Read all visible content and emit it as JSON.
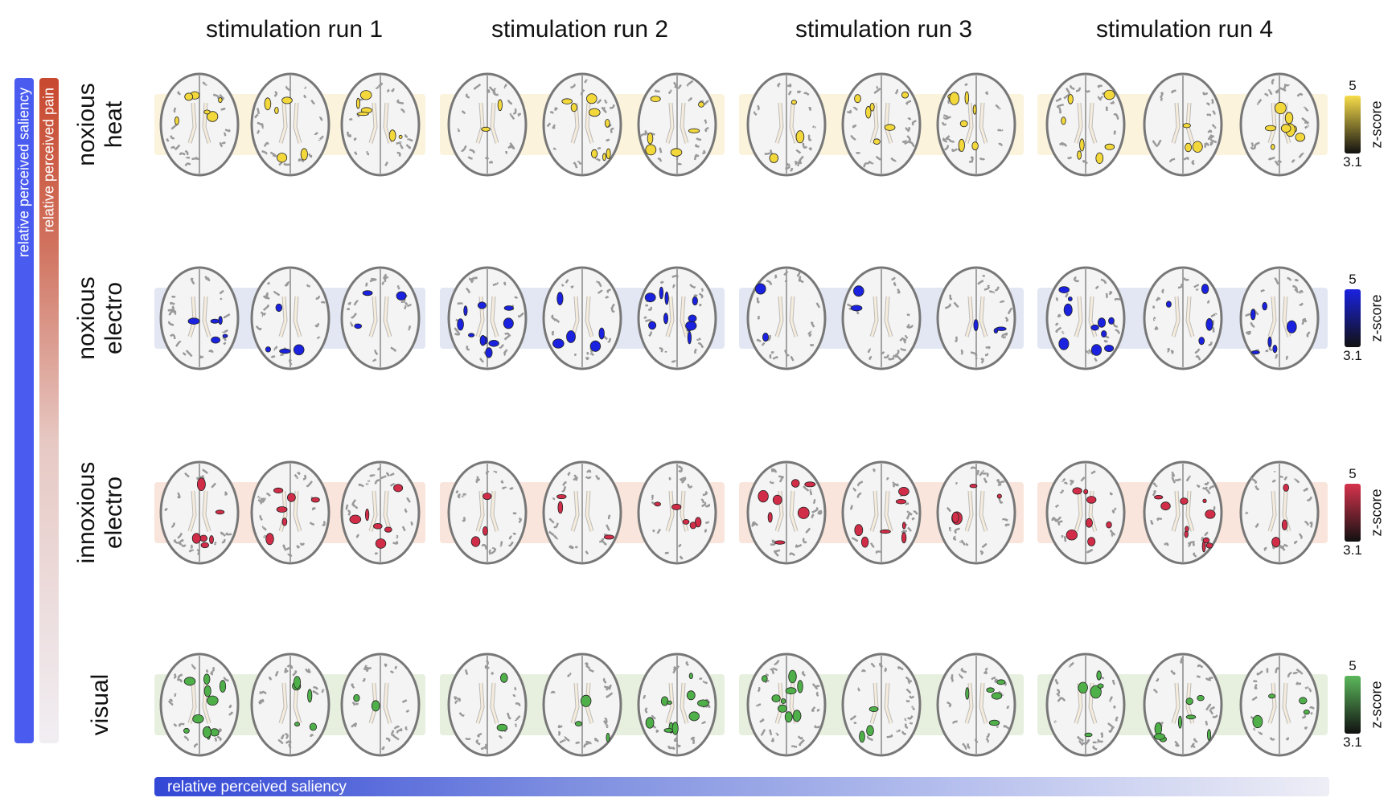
{
  "columns": [
    "stimulation run 1",
    "stimulation run 2",
    "stimulation run 3",
    "stimulation run 4"
  ],
  "rows": [
    {
      "label_line1": "noxious",
      "label_line2": "heat",
      "color": "#f3d83c",
      "band": "#fbf3dc",
      "cb_top": "#f7dc4a"
    },
    {
      "label_line1": "noxious",
      "label_line2": "electro",
      "color": "#1a22e0",
      "band": "#e2e7f3",
      "cb_top": "#1a22e0"
    },
    {
      "label_line1": "innoxious",
      "label_line2": "electro",
      "color": "#d22d48",
      "band": "#f9e5db",
      "cb_top": "#d7334d"
    },
    {
      "label_line1": "",
      "label_line2": "visual",
      "color": "#4fb04a",
      "band": "#e7f0df",
      "cb_top": "#5cb85c"
    }
  ],
  "colorbar": {
    "max": "5",
    "min": "3.1",
    "label": "z-score"
  },
  "left_bars": {
    "saliency": "relative perceived saliency",
    "pain": "relative perceived pain"
  },
  "bottom_bar": "relative perceived saliency"
}
